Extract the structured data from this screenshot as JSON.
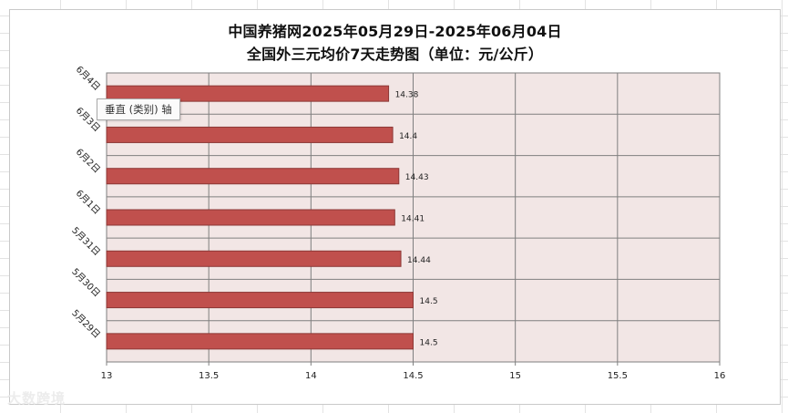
{
  "chart_data": {
    "type": "bar",
    "orientation": "horizontal",
    "title_line1": "中国养猪网2025年05月29日-2025年06月04日",
    "title_line2": "全国外三元均价7天走势图（单位：元/公斤）",
    "categories": [
      "6月4日",
      "6月3日",
      "6月2日",
      "6月1日",
      "5月31日",
      "5月30日",
      "5月29日"
    ],
    "values": [
      14.38,
      14.4,
      14.43,
      14.41,
      14.44,
      14.5,
      14.5
    ],
    "value_labels": [
      "14.38",
      "14.4",
      "14.43",
      "14.41",
      "14.44",
      "14.5",
      "14.5"
    ],
    "xlim": [
      13,
      16
    ],
    "x_ticks": [
      13,
      13.5,
      14,
      14.5,
      15,
      15.5,
      16
    ],
    "x_tick_labels": [
      "13",
      "13.5",
      "14",
      "14.5",
      "15",
      "15.5",
      "16"
    ],
    "grid": true,
    "legend": "none",
    "colors": {
      "bar_fill": "#c0504d",
      "bar_stroke": "#8c3836",
      "plot_background": "#f2e6e5",
      "grid": "#7f7f7f"
    }
  },
  "tooltip": {
    "text": "垂直 (类别) 轴"
  },
  "watermark": {
    "text": "大数跨境"
  }
}
